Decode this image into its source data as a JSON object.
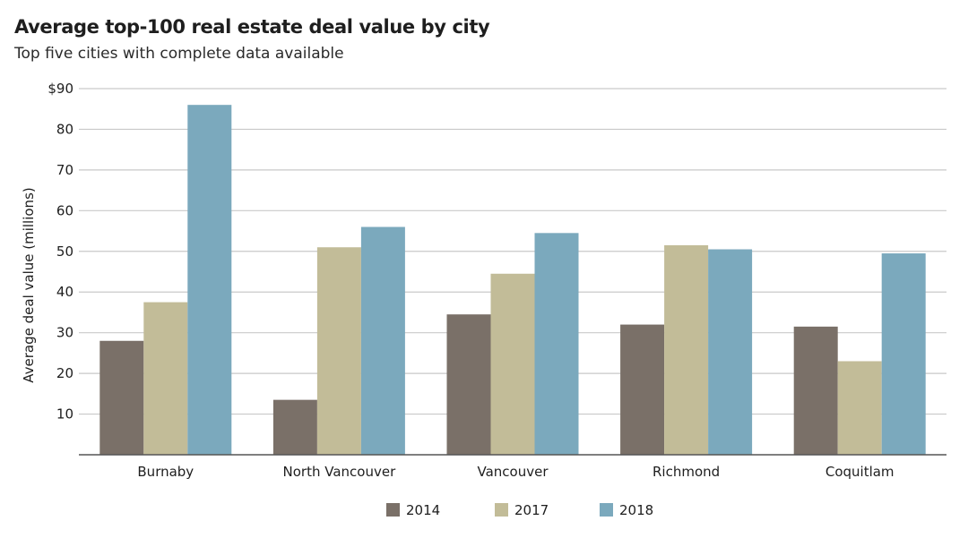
{
  "chart_data": {
    "type": "bar",
    "title": "Average top-100 real estate deal value by city",
    "subtitle": "Top five cities with complete data available",
    "ylabel": "Average deal value (millions)",
    "xlabel": "",
    "ylim": [
      0,
      90
    ],
    "yticks": [
      10,
      20,
      30,
      40,
      50,
      60,
      70,
      80,
      90
    ],
    "ytick_labels": [
      "10",
      "20",
      "30",
      "40",
      "50",
      "60",
      "70",
      "80",
      "$90"
    ],
    "categories": [
      "Burnaby",
      "North Vancouver",
      "Vancouver",
      "Richmond",
      "Coquitlam"
    ],
    "series": [
      {
        "name": "2014",
        "color": "#7a7068",
        "values": [
          28,
          13.5,
          34.5,
          32,
          31.5
        ]
      },
      {
        "name": "2017",
        "color": "#c2bc98",
        "values": [
          37.5,
          51,
          44.5,
          51.5,
          23
        ]
      },
      {
        "name": "2018",
        "color": "#7ba9bd",
        "values": [
          86,
          56,
          54.5,
          50.5,
          49.5
        ]
      }
    ],
    "grid": true,
    "legend_position": "bottom-center"
  }
}
